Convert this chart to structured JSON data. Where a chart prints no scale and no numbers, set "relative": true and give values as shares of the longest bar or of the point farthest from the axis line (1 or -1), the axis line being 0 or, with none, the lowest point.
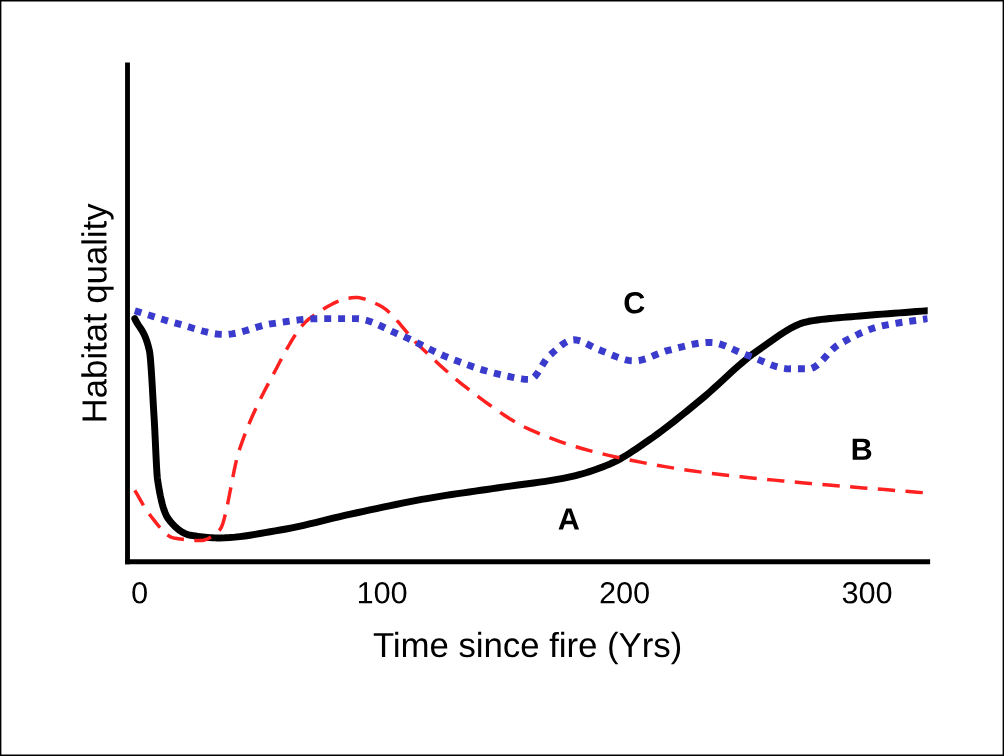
{
  "chart_data": {
    "type": "line",
    "relative": true,
    "xlabel": "Time since fire (Yrs)",
    "ylabel": "Habitat quality",
    "xlim": [
      -5,
      325
    ],
    "xticks": [
      0,
      100,
      200,
      300
    ],
    "grid": false,
    "legend": false,
    "series": [
      {
        "name": "A",
        "color": "#000000",
        "line_style": "solid",
        "x": [
          -2,
          4,
          6,
          7.4,
          12,
          21,
          33,
          58,
          87,
          119,
          148,
          177,
          194,
          210,
          231,
          255,
          276,
          297,
          325
        ],
        "values": [
          0.92,
          0.8,
          0.54,
          0.31,
          0.16,
          0.1,
          0.09,
          0.12,
          0.18,
          0.24,
          0.28,
          0.32,
          0.37,
          0.46,
          0.61,
          0.8,
          0.91,
          0.93,
          0.95
        ]
      },
      {
        "name": "B",
        "color": "#ff2020",
        "line_style": "dashed",
        "x": [
          -2,
          4,
          14,
          25,
          33,
          41,
          54,
          70,
          89,
          99,
          115,
          136,
          161,
          190,
          231,
          272,
          325
        ],
        "values": [
          0.27,
          0.18,
          0.09,
          0.08,
          0.12,
          0.42,
          0.69,
          0.92,
          1.0,
          0.97,
          0.82,
          0.65,
          0.5,
          0.41,
          0.34,
          0.3,
          0.26
        ]
      },
      {
        "name": "C",
        "color": "#3a3acc",
        "line_style": "dotted",
        "x": [
          -2,
          16,
          35,
          54,
          74,
          89,
          107,
          128,
          148,
          161,
          169,
          179,
          190,
          204,
          218,
          235,
          251,
          268,
          276,
          288,
          305,
          325
        ],
        "values": [
          0.95,
          0.9,
          0.86,
          0.9,
          0.92,
          0.92,
          0.86,
          0.77,
          0.71,
          0.69,
          0.78,
          0.84,
          0.8,
          0.76,
          0.8,
          0.83,
          0.78,
          0.73,
          0.73,
          0.82,
          0.89,
          0.92
        ]
      }
    ]
  }
}
